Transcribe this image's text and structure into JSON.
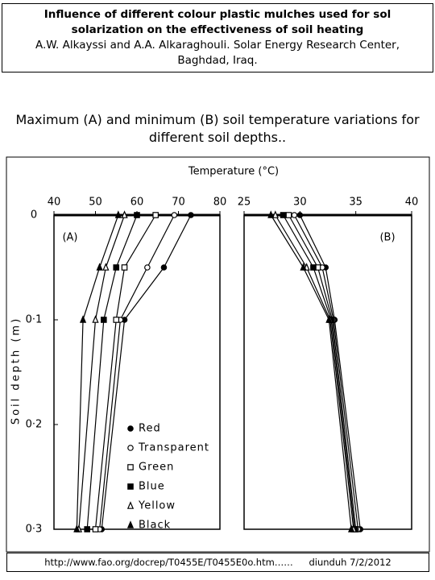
{
  "header": {
    "title": "Influence of different colour plastic mulches used for sol solarization on the effectiveness of soil heating",
    "authors": "A.W. Alkayssi and A.A. Alkaraghouli. Solar Energy Research Center, Baghdad, Iraq."
  },
  "caption": "Maximum (A) and minimum (B) soil temperature variations for different soil depths..",
  "temperature_label": "Temperature (°C)",
  "footer": {
    "url": "http://www.fao.org/docrep/T0455E/T0455E0o.htm……",
    "note": "diunduh 7/2/2012"
  },
  "chart_data": [
    {
      "type": "line",
      "panel": "(A)",
      "ylabel": "Soil depth (m)",
      "y": [
        0,
        0.05,
        0.1,
        0.3
      ],
      "xlim": [
        40,
        80
      ],
      "xticks": [
        40,
        50,
        60,
        70,
        80
      ],
      "ylim": [
        0,
        0.3
      ],
      "yticks": [
        0,
        {
          "value": 0.1,
          "label": "0·1"
        },
        {
          "value": 0.2,
          "label": "0·2"
        },
        {
          "value": 0.3,
          "label": "0·3"
        }
      ],
      "legend": true,
      "series": [
        {
          "name": "Red",
          "marker": "filled-circle",
          "color": "#000",
          "values": [
            73,
            66.5,
            57,
            51.5
          ]
        },
        {
          "name": "Transparent",
          "marker": "open-circle",
          "color": "#000",
          "values": [
            69,
            62.5,
            56,
            51
          ]
        },
        {
          "name": "Green",
          "marker": "open-square",
          "color": "#000",
          "values": [
            64.5,
            57,
            55,
            50
          ]
        },
        {
          "name": "Blue",
          "marker": "filled-square",
          "color": "#000",
          "values": [
            60,
            55,
            52,
            48
          ]
        },
        {
          "name": "Yellow",
          "marker": "open-triangle",
          "color": "#000",
          "values": [
            57,
            52.5,
            50,
            46
          ]
        },
        {
          "name": "Black",
          "marker": "filled-triangle",
          "color": "#000",
          "values": [
            55.5,
            51,
            47,
            45.5
          ]
        }
      ]
    },
    {
      "type": "line",
      "panel": "(B)",
      "y": [
        0,
        0.05,
        0.1,
        0.3
      ],
      "xlim": [
        25,
        40
      ],
      "xticks": [
        25,
        30,
        35,
        40
      ],
      "ylim": [
        0,
        0.3
      ],
      "legend": false,
      "series": [
        {
          "marker": "filled-circle",
          "color": "#000",
          "values": [
            30,
            32.3,
            33.1,
            35.4
          ]
        },
        {
          "marker": "open-circle",
          "color": "#000",
          "values": [
            29.5,
            32,
            33,
            35.2
          ]
        },
        {
          "marker": "open-square",
          "color": "#000",
          "values": [
            29,
            31.6,
            32.9,
            35
          ]
        },
        {
          "marker": "filled-square",
          "color": "#000",
          "values": [
            28.5,
            31.2,
            32.8,
            34.9
          ]
        },
        {
          "marker": "open-triangle",
          "color": "#000",
          "values": [
            27.8,
            30.6,
            32.7,
            34.8
          ]
        },
        {
          "marker": "filled-triangle",
          "color": "#000",
          "values": [
            27.4,
            30.3,
            32.6,
            34.6
          ]
        }
      ]
    }
  ]
}
